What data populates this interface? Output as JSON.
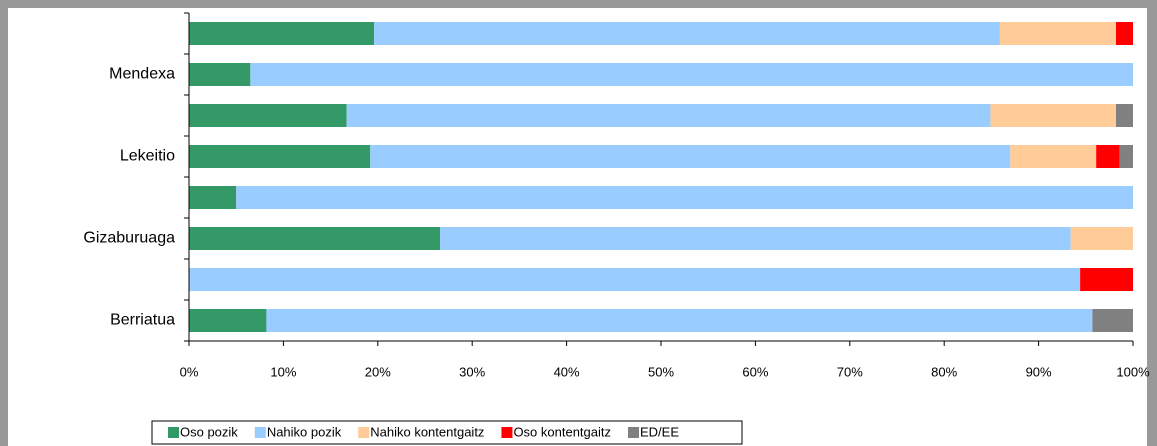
{
  "chart_data": {
    "type": "stacked-bar-horizontal",
    "categories": [
      null,
      "Mendexa",
      null,
      "Lekeitio",
      null,
      "Gizaburuaga",
      null,
      "Berriatua"
    ],
    "series": [
      {
        "name": "Oso pozik",
        "color": "#339966",
        "values": [
          19.6,
          6.5,
          16.7,
          19.2,
          5.0,
          26.6,
          0,
          8.2
        ]
      },
      {
        "name": "Nahiko pozik",
        "color": "#99ccff",
        "values": [
          66.3,
          93.5,
          68.2,
          67.8,
          95.0,
          66.8,
          94.4,
          87.5
        ]
      },
      {
        "name": "Nahiko kontentgaitz",
        "color": "#ffcc99",
        "values": [
          12.3,
          0,
          13.3,
          9.1,
          0,
          6.6,
          0,
          0
        ]
      },
      {
        "name": "Oso kontentgaitz",
        "color": "#ff0000",
        "values": [
          1.8,
          0,
          0,
          2.5,
          0,
          0,
          5.6,
          0
        ]
      },
      {
        "name": "ED/EE",
        "color": "#808080",
        "values": [
          0,
          0,
          1.8,
          1.4,
          0,
          0,
          0,
          4.3
        ]
      }
    ],
    "xlim": [
      0,
      100
    ],
    "xticks": [
      {
        "value": 0,
        "label": "0%"
      },
      {
        "value": 10,
        "label": "10%"
      },
      {
        "value": 20,
        "label": "20%"
      },
      {
        "value": 30,
        "label": "30%"
      },
      {
        "value": 40,
        "label": "40%"
      },
      {
        "value": 50,
        "label": "50%"
      },
      {
        "value": 60,
        "label": "60%"
      },
      {
        "value": 70,
        "label": "70%"
      },
      {
        "value": 80,
        "label": "80%"
      },
      {
        "value": 90,
        "label": "90%"
      },
      {
        "value": 100,
        "label": "100%"
      }
    ],
    "legend": "bottom"
  }
}
